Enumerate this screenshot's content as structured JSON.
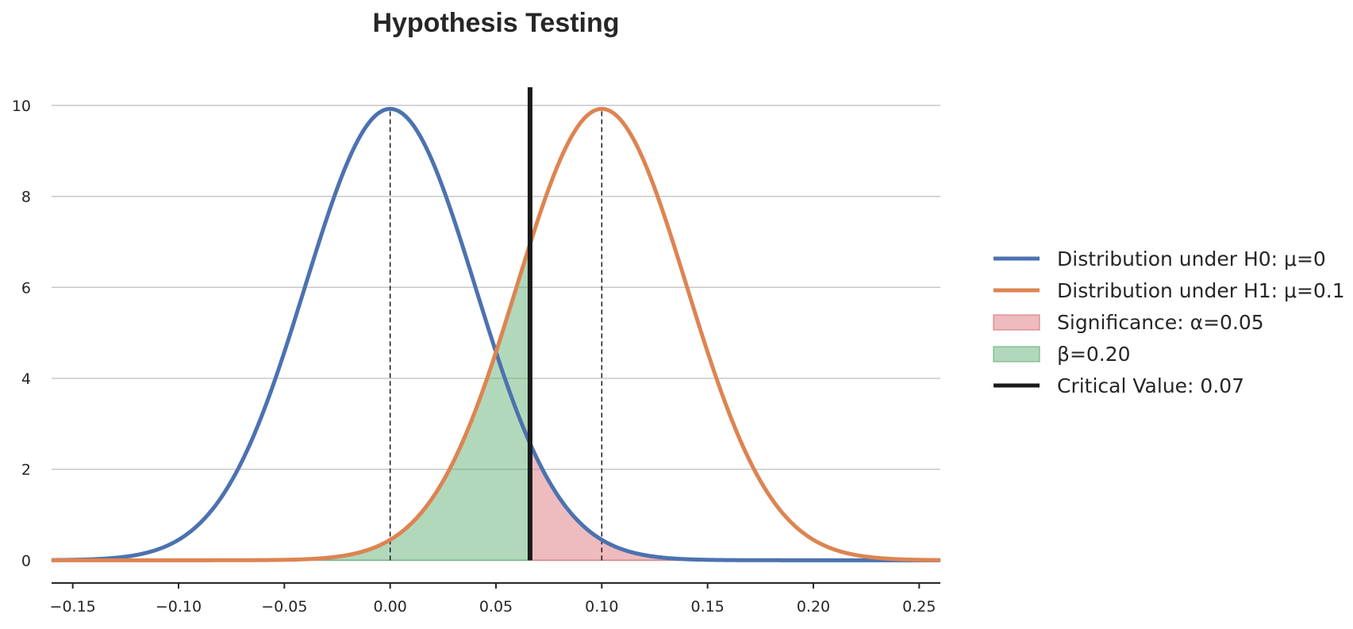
{
  "chart_data": {
    "type": "line",
    "title": "Hypothesis Testing",
    "xlabel": "",
    "ylabel": "",
    "xlim": [
      -0.16,
      0.26
    ],
    "ylim": [
      -0.5,
      10.4
    ],
    "x_ticks": [
      -0.15,
      -0.1,
      -0.05,
      0.0,
      0.05,
      0.1,
      0.15,
      0.2,
      0.25
    ],
    "x_tick_labels": [
      "−0.15",
      "−0.10",
      "−0.05",
      "0.00",
      "0.05",
      "0.10",
      "0.15",
      "0.20",
      "0.25"
    ],
    "y_ticks": [
      0,
      2,
      4,
      6,
      8,
      10
    ],
    "y_tick_labels": [
      "0",
      "2",
      "4",
      "6",
      "8",
      "10"
    ],
    "grid": "horizontal",
    "legend_position": "outside-right",
    "sigma": 0.0402,
    "series": [
      {
        "name": "Distribution under H0: μ=0",
        "kind": "normal-pdf",
        "mean": 0,
        "color": "#4c72b0"
      },
      {
        "name": "Distribution under H1: μ=0.1",
        "kind": "normal-pdf",
        "mean": 0.1,
        "color": "#dd8452"
      }
    ],
    "mean_lines": [
      0,
      0.1
    ],
    "critical_value": {
      "label": "Critical Value: 0.07",
      "x": 0.0661,
      "color": "#1a1a1a"
    },
    "shaded_regions": [
      {
        "label": "Significance: α=0.05",
        "under_mean": 0,
        "from": 0.0661,
        "to": 0.26,
        "color": "#d9686e"
      },
      {
        "label": "β=0.20",
        "under_mean": 0.1,
        "from": -0.16,
        "to": 0.0661,
        "color": "#55a868"
      }
    ],
    "legend": [
      {
        "label": "Distribution under H0: μ=0",
        "kind": "line",
        "color": "#4c72b0"
      },
      {
        "label": "Distribution under H1: μ=0.1",
        "kind": "line",
        "color": "#dd8452"
      },
      {
        "label": "Significance: α=0.05",
        "kind": "patch",
        "color": "#d9686e"
      },
      {
        "label": "β=0.20",
        "kind": "patch",
        "color": "#55a868"
      },
      {
        "label": "Critical Value: 0.07",
        "kind": "line",
        "color": "#1a1a1a"
      }
    ]
  }
}
